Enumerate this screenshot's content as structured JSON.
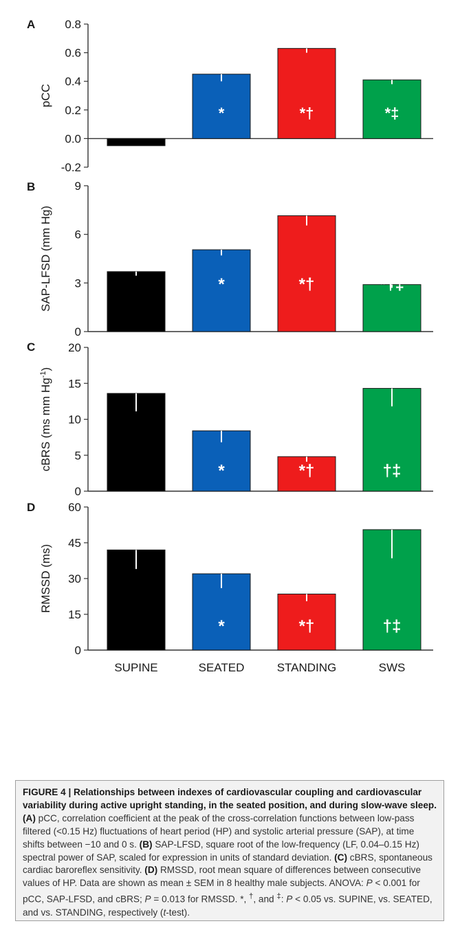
{
  "chart_data": [
    {
      "panel": "A",
      "type": "bar",
      "ylabel": "pCC",
      "categories": [
        "SUPINE",
        "SEATED",
        "STANDING",
        "SWS"
      ],
      "values": [
        -0.05,
        0.45,
        0.63,
        0.41
      ],
      "sem": [
        0.0,
        0.05,
        0.03,
        0.03
      ],
      "ylim": [
        -0.2,
        0.8
      ],
      "yticks": [
        "-0.2",
        "0.0",
        "0.2",
        "0.4",
        "0.6",
        "0.8"
      ],
      "significance": [
        "",
        "*",
        "*†",
        "*‡"
      ]
    },
    {
      "panel": "B",
      "type": "bar",
      "ylabel": "SAP-LFSD (mm Hg)",
      "categories": [
        "SUPINE",
        "SEATED",
        "STANDING",
        "SWS"
      ],
      "values": [
        3.7,
        5.05,
        7.15,
        2.9
      ],
      "sem": [
        0.25,
        0.35,
        0.6,
        0.2
      ],
      "ylim": [
        0,
        9
      ],
      "yticks": [
        "0",
        "3",
        "6",
        "9"
      ],
      "significance": [
        "",
        "*",
        "*†",
        "*†‡"
      ]
    },
    {
      "panel": "C",
      "type": "bar",
      "ylabel": "cBRS (ms mm Hg",
      "ylabel_sup": "-1",
      "ylabel_end": ")",
      "categories": [
        "SUPINE",
        "SEATED",
        "STANDING",
        "SWS"
      ],
      "values": [
        13.6,
        8.4,
        4.8,
        14.3
      ],
      "sem": [
        2.5,
        1.6,
        0.7,
        2.5
      ],
      "ylim": [
        0,
        20
      ],
      "yticks": [
        "0",
        "5",
        "10",
        "15",
        "20"
      ],
      "significance": [
        "",
        "*",
        "*†",
        "†‡"
      ]
    },
    {
      "panel": "D",
      "type": "bar",
      "ylabel": "RMSSD (ms)",
      "categories": [
        "SUPINE",
        "SEATED",
        "STANDING",
        "SWS"
      ],
      "values": [
        42,
        32,
        23.5,
        50.5
      ],
      "sem": [
        8,
        6,
        3,
        12
      ],
      "ylim": [
        0,
        60
      ],
      "yticks": [
        "0",
        "15",
        "30",
        "45",
        "60"
      ],
      "significance": [
        "",
        "*",
        "*†",
        "†‡"
      ]
    }
  ],
  "colors": {
    "SUPINE": "#000000",
    "SEATED": "#0a60b8",
    "STANDING": "#ee1c1c",
    "SWS": "#00a14b",
    "axis": "#333333",
    "marker": "#ffffff"
  },
  "xtick_labels": [
    "SUPINE",
    "SEATED",
    "STANDING",
    "SWS"
  ],
  "caption": {
    "bold_title": "FIGURE 4 | Relationships between indexes of cardiovascular coupling and cardiovascular variability during active upright standing, in the seated position, and during slow-wave sleep.",
    "a_tag": "(A)",
    "a_text": " pCC, correlation coefficient at the peak of the cross-correlation functions between low-pass filtered (<0.15 Hz) fluctuations of heart period (HP) and systolic arterial pressure (SAP), at time shifts between −10 and 0 s. ",
    "b_tag": "(B)",
    "b_text": " SAP-LFSD, square root of the low-frequency (LF, 0.04–0.15 Hz) spectral power of SAP, scaled for expression in units of standard deviation. ",
    "c_tag": "(C)",
    "c_text": " cBRS, spontaneous cardiac baroreflex sensitivity. ",
    "d_tag": "(D)",
    "d_text": " RMSSD, root mean square of differences between consecutive values of HP. Data are shown as mean ± SEM in 8 healthy male subjects. ANOVA: ",
    "p1": "P",
    "t1": " < 0.001 for pCC, SAP-LFSD, and cBRS; ",
    "p2": "P",
    "t2": " = 0.013 for RMSSD. *, ",
    "dagger": "†",
    "t3": ", and ",
    "ddagger": "‡",
    "t4": ": ",
    "p3": "P",
    "t5": " < 0.05 vs. SUPINE, vs. SEATED, and vs. STANDING, respectively (",
    "t_italic": "t",
    "t6": "-test)."
  }
}
